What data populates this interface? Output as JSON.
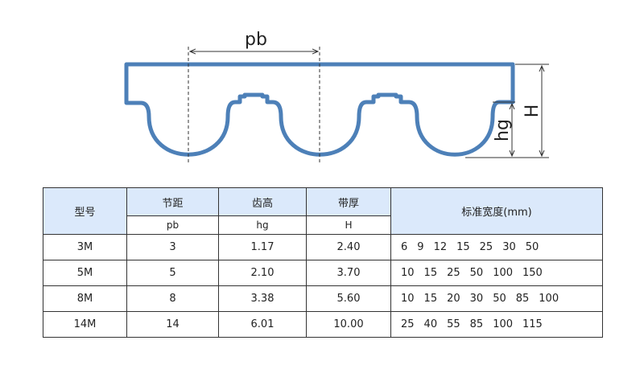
{
  "diagram": {
    "pitch_label": "pb",
    "tooth_height_label": "hg",
    "belt_height_label": "H"
  },
  "table": {
    "header": {
      "model": "型号",
      "pitch": "节距",
      "pitch_sub": "pb",
      "tooth_height": "齿高",
      "tooth_height_sub": "hg",
      "thickness": "带厚",
      "thickness_sub": "H",
      "widths": "标准宽度(mm)"
    },
    "rows": [
      {
        "model": "3M",
        "pitch": "3",
        "tooth_height": "1.17",
        "thickness": "2.40",
        "widths": [
          "6",
          "9",
          "12",
          "15",
          "25",
          "30",
          "50"
        ]
      },
      {
        "model": "5M",
        "pitch": "5",
        "tooth_height": "2.10",
        "thickness": "3.70",
        "widths": [
          "10",
          "15",
          "25",
          "50",
          "100",
          "150"
        ]
      },
      {
        "model": "8M",
        "pitch": "8",
        "tooth_height": "3.38",
        "thickness": "5.60",
        "widths": [
          "10",
          "15",
          "20",
          "30",
          "50",
          "85",
          "100"
        ]
      },
      {
        "model": "14M",
        "pitch": "14",
        "tooth_height": "6.01",
        "thickness": "10.00",
        "widths": [
          "25",
          "40",
          "55",
          "85",
          "100",
          "115"
        ]
      }
    ]
  }
}
